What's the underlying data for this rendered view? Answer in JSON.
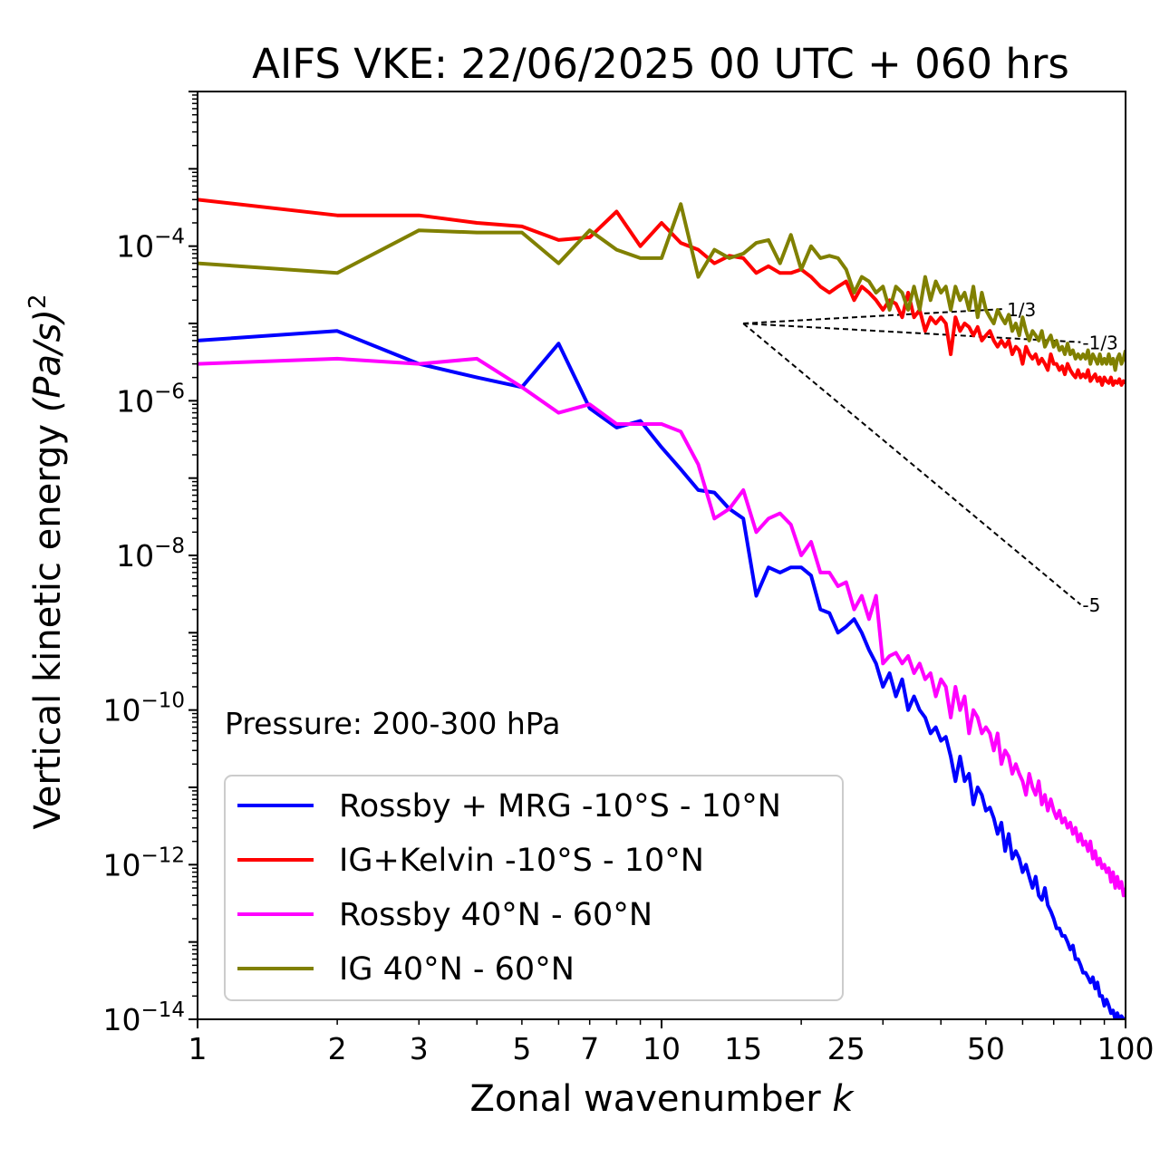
{
  "chart_data": {
    "type": "line",
    "title": "AIFS VKE: 22/06/2025 00 UTC + 060 hrs",
    "xlabel": "Zonal wavenumber",
    "xlabel_var": "k",
    "ylabel": "Vertical kinetic energy",
    "ylabel_unit": "(Pa/s)",
    "ylabel_exp": "2",
    "xscale": "log",
    "yscale": "log",
    "xlim": [
      1,
      100
    ],
    "ylim": [
      1e-14,
      0.01
    ],
    "xticks": [
      1,
      2,
      3,
      5,
      7,
      10,
      15,
      25,
      50,
      100
    ],
    "xtick_labels": [
      "1",
      "2",
      "3",
      "5",
      "7",
      "10",
      "15",
      "25",
      "50",
      "100"
    ],
    "yticks": [
      1e-14,
      1e-12,
      1e-10,
      1e-08,
      1e-06,
      0.0001
    ],
    "ytick_base": "10",
    "ytick_exponents": [
      "−14",
      "−12",
      "−10",
      "−8",
      "−6",
      "−4"
    ],
    "annotation": "Pressure: 200-300 hPa",
    "legend_position": "lower-left",
    "reference_slopes": [
      {
        "label": "1/3",
        "slope": 0.3333,
        "x": [
          15,
          55
        ]
      },
      {
        "label": "-1/3",
        "slope": -0.3333,
        "x": [
          15,
          80
        ]
      },
      {
        "label": "-5",
        "slope": -5,
        "x": [
          15,
          80
        ]
      }
    ],
    "reference_anchor": {
      "x": 15,
      "y": 1e-05
    },
    "series": [
      {
        "name": "Rossby + MRG -10°S - 10°N",
        "color": "#0000ff",
        "x": [
          1,
          2,
          3,
          4,
          5,
          6,
          7,
          8,
          9,
          10,
          11,
          12,
          13,
          14,
          15,
          16,
          17,
          18,
          19,
          20,
          21,
          22,
          23,
          24,
          25,
          26,
          27,
          28,
          29,
          30,
          31,
          32,
          33,
          34,
          35,
          36,
          37,
          38,
          39,
          40,
          41,
          42,
          43,
          44,
          45,
          46,
          47,
          48,
          49,
          50,
          51,
          52,
          53,
          54,
          55,
          56,
          57,
          58,
          59,
          60,
          61,
          62,
          63,
          64,
          65,
          66,
          67,
          68,
          69,
          70,
          71,
          72,
          73,
          74,
          75,
          76,
          77,
          78,
          79,
          80,
          81,
          82,
          83,
          84,
          85,
          86,
          87,
          88,
          89,
          90,
          91,
          92,
          93,
          94,
          95,
          96,
          97,
          98,
          99,
          100
        ],
        "y": [
          6e-06,
          8e-06,
          3e-06,
          2e-06,
          1.5e-06,
          5.5e-06,
          8e-07,
          4.5e-07,
          5.5e-07,
          2.5e-07,
          1.3e-07,
          7e-08,
          6.5e-08,
          4e-08,
          3e-08,
          3e-09,
          7e-09,
          6e-09,
          7e-09,
          7e-09,
          5.5e-09,
          2e-09,
          1.8e-09,
          1e-09,
          1.2e-09,
          1.5e-09,
          1e-09,
          6e-10,
          4e-10,
          2e-10,
          3e-10,
          1.5e-10,
          2.5e-10,
          1e-10,
          1.5e-10,
          1e-10,
          8e-11,
          5e-11,
          6e-11,
          4e-11,
          4.5e-11,
          2.5e-11,
          1.2e-11,
          2.5e-11,
          1.2e-11,
          1.5e-11,
          6e-12,
          1e-11,
          8e-12,
          5e-12,
          5.5e-12,
          4e-12,
          2.5e-12,
          3.5e-12,
          1.5e-12,
          2.5e-12,
          1.2e-12,
          1.5e-12,
          1.2e-12,
          8e-13,
          1e-12,
          7e-13,
          5e-13,
          7e-13,
          4e-13,
          3.5e-13,
          5e-13,
          3e-13,
          2.5e-13,
          2e-13,
          1.5e-13,
          1.5e-13,
          1.2e-13,
          1.2e-13,
          1e-13,
          8e-14,
          9e-14,
          6e-14,
          6e-14,
          5e-14,
          4e-14,
          4e-14,
          3.5e-14,
          3e-14,
          3.5e-14,
          2.5e-14,
          3e-14,
          2e-14,
          2e-14,
          1.5e-14,
          1.8e-14,
          1.5e-14,
          1.2e-14,
          1.3e-14,
          1e-14,
          1.2e-14,
          1e-14,
          1.1e-14,
          1e-14,
          1e-14
        ]
      },
      {
        "name": "IG+Kelvin -10°S - 10°N",
        "color": "#ff0000",
        "x": [
          1,
          2,
          3,
          4,
          5,
          6,
          7,
          8,
          9,
          10,
          11,
          12,
          13,
          14,
          15,
          16,
          17,
          18,
          19,
          20,
          21,
          22,
          23,
          24,
          25,
          26,
          27,
          28,
          29,
          30,
          31,
          32,
          33,
          34,
          35,
          36,
          37,
          38,
          39,
          40,
          41,
          42,
          43,
          44,
          45,
          46,
          47,
          48,
          49,
          50,
          51,
          52,
          53,
          54,
          55,
          56,
          57,
          58,
          59,
          60,
          61,
          62,
          63,
          64,
          65,
          66,
          67,
          68,
          69,
          70,
          71,
          72,
          73,
          74,
          75,
          76,
          77,
          78,
          79,
          80,
          81,
          82,
          83,
          84,
          85,
          86,
          87,
          88,
          89,
          90,
          91,
          92,
          93,
          94,
          95,
          96,
          97,
          98,
          99,
          100
        ],
        "y": [
          0.0004,
          0.00025,
          0.00025,
          0.0002,
          0.00018,
          0.00012,
          0.00013,
          0.00028,
          0.0001,
          0.0002,
          0.00011,
          9e-05,
          6e-05,
          7.5e-05,
          7e-05,
          4.5e-05,
          5.5e-05,
          4.5e-05,
          4.5e-05,
          5e-05,
          4e-05,
          3e-05,
          2.5e-05,
          3e-05,
          3.5e-05,
          2e-05,
          3e-05,
          2.5e-05,
          2e-05,
          1.5e-05,
          2e-05,
          1.8e-05,
          1.2e-05,
          2.5e-05,
          1.2e-05,
          1.5e-05,
          8e-06,
          1.2e-05,
          1e-05,
          1.2e-05,
          1e-05,
          4e-06,
          1.2e-05,
          8e-06,
          1e-05,
          9e-06,
          7e-06,
          9e-06,
          6e-06,
          7e-06,
          8e-06,
          6e-06,
          5e-06,
          6e-06,
          5e-06,
          6e-06,
          4e-06,
          5e-06,
          4.5e-06,
          3e-06,
          5e-06,
          4e-06,
          3.5e-06,
          4e-06,
          3e-06,
          3.5e-06,
          3e-06,
          2.5e-06,
          4e-06,
          3e-06,
          3e-06,
          2.5e-06,
          2.8e-06,
          2.2e-06,
          3e-06,
          2.5e-06,
          2.2e-06,
          2e-06,
          2.5e-06,
          2e-06,
          2.2e-06,
          2e-06,
          2.5e-06,
          1.8e-06,
          2e-06,
          2.2e-06,
          1.8e-06,
          2e-06,
          1.6e-06,
          2e-06,
          1.8e-06,
          1.7e-06,
          2e-06,
          1.6e-06,
          1.8e-06,
          1.7e-06,
          1.9e-06,
          1.6e-06,
          1.8e-06,
          1.7e-06
        ]
      },
      {
        "name": "Rossby 40°N - 60°N",
        "color": "#ff00ff",
        "x": [
          1,
          2,
          3,
          4,
          5,
          6,
          7,
          8,
          9,
          10,
          11,
          12,
          13,
          14,
          15,
          16,
          17,
          18,
          19,
          20,
          21,
          22,
          23,
          24,
          25,
          26,
          27,
          28,
          29,
          30,
          31,
          32,
          33,
          34,
          35,
          36,
          37,
          38,
          39,
          40,
          41,
          42,
          43,
          44,
          45,
          46,
          47,
          48,
          49,
          50,
          51,
          52,
          53,
          54,
          55,
          56,
          57,
          58,
          59,
          60,
          61,
          62,
          63,
          64,
          65,
          66,
          67,
          68,
          69,
          70,
          71,
          72,
          73,
          74,
          75,
          76,
          77,
          78,
          79,
          80,
          81,
          82,
          83,
          84,
          85,
          86,
          87,
          88,
          89,
          90,
          91,
          92,
          93,
          94,
          95,
          96,
          97,
          98,
          99,
          100
        ],
        "y": [
          3e-06,
          3.5e-06,
          3e-06,
          3.5e-06,
          1.5e-06,
          7e-07,
          9e-07,
          5e-07,
          5e-07,
          5e-07,
          4e-07,
          1.5e-07,
          3e-08,
          4e-08,
          7e-08,
          2e-08,
          3e-08,
          3.5e-08,
          2.5e-08,
          1e-08,
          1.5e-08,
          6e-09,
          6e-09,
          4e-09,
          4.5e-09,
          2e-09,
          3e-09,
          1.5e-09,
          3e-09,
          4e-10,
          5e-10,
          5.5e-10,
          4e-10,
          5e-10,
          3e-10,
          4e-10,
          2.5e-10,
          3e-10,
          1.5e-10,
          2.5e-10,
          2e-10,
          8e-11,
          2e-10,
          1e-10,
          1.5e-10,
          5e-11,
          1e-10,
          8e-11,
          5e-11,
          6e-11,
          5e-11,
          3e-11,
          5e-11,
          2e-11,
          3e-11,
          2.5e-11,
          1.5e-11,
          2e-11,
          1.5e-11,
          1.2e-11,
          8e-12,
          1.5e-11,
          1e-11,
          8e-12,
          1.2e-11,
          6e-12,
          8e-12,
          5e-12,
          7e-12,
          5e-12,
          4e-12,
          5e-12,
          3.5e-12,
          4e-12,
          3e-12,
          3.5e-12,
          2.5e-12,
          3e-12,
          2e-12,
          2.5e-12,
          1.8e-12,
          2e-12,
          1.5e-12,
          2e-12,
          1.2e-12,
          1.5e-12,
          1e-12,
          1.2e-12,
          9e-13,
          1e-12,
          8e-13,
          9e-13,
          6e-13,
          8e-13,
          5e-13,
          7e-13,
          5e-13,
          6e-13,
          4e-13,
          5e-13
        ]
      },
      {
        "name": "IG 40°N - 60°N",
        "color": "#808000",
        "x": [
          1,
          2,
          3,
          4,
          5,
          6,
          7,
          8,
          9,
          10,
          11,
          12,
          13,
          14,
          15,
          16,
          17,
          18,
          19,
          20,
          21,
          22,
          23,
          24,
          25,
          26,
          27,
          28,
          29,
          30,
          31,
          32,
          33,
          34,
          35,
          36,
          37,
          38,
          39,
          40,
          41,
          42,
          43,
          44,
          45,
          46,
          47,
          48,
          49,
          50,
          51,
          52,
          53,
          54,
          55,
          56,
          57,
          58,
          59,
          60,
          61,
          62,
          63,
          64,
          65,
          66,
          67,
          68,
          69,
          70,
          71,
          72,
          73,
          74,
          75,
          76,
          77,
          78,
          79,
          80,
          81,
          82,
          83,
          84,
          85,
          86,
          87,
          88,
          89,
          90,
          91,
          92,
          93,
          94,
          95,
          96,
          97,
          98,
          99,
          100
        ],
        "y": [
          6e-05,
          4.5e-05,
          0.00016,
          0.00015,
          0.00015,
          6e-05,
          0.00016,
          9e-05,
          7e-05,
          7e-05,
          0.00035,
          4e-05,
          9e-05,
          7e-05,
          8e-05,
          0.00011,
          0.00012,
          6e-05,
          0.00014,
          5e-05,
          0.0001,
          7e-05,
          7.5e-05,
          7e-05,
          5e-05,
          2.5e-05,
          4e-05,
          3.5e-05,
          2.5e-05,
          3e-05,
          1.5e-05,
          3e-05,
          2.5e-05,
          1.5e-05,
          3e-05,
          1.5e-05,
          4e-05,
          2e-05,
          3.5e-05,
          2.5e-05,
          3e-05,
          1.5e-05,
          3e-05,
          2e-05,
          2.5e-05,
          1.5e-05,
          3e-05,
          1.2e-05,
          2.5e-05,
          1.5e-05,
          1.2e-05,
          1e-05,
          1.5e-05,
          1.2e-05,
          1e-05,
          1.3e-05,
          8e-06,
          1e-05,
          7e-06,
          1.2e-05,
          8e-06,
          6e-06,
          8e-06,
          7e-06,
          6e-06,
          8e-06,
          5e-06,
          6e-06,
          7e-06,
          5e-06,
          6e-06,
          4.5e-06,
          5e-06,
          4e-06,
          5.5e-06,
          4e-06,
          4.5e-06,
          3.5e-06,
          4e-06,
          3.5e-06,
          4e-06,
          3.5e-06,
          4.5e-06,
          3e-06,
          4e-06,
          3.5e-06,
          3e-06,
          4e-06,
          3e-06,
          3.5e-06,
          3e-06,
          4e-06,
          3e-06,
          3.5e-06,
          2.5e-06,
          3.5e-06,
          4e-06,
          3e-06,
          3.5e-06,
          4.5e-06
        ]
      }
    ]
  }
}
